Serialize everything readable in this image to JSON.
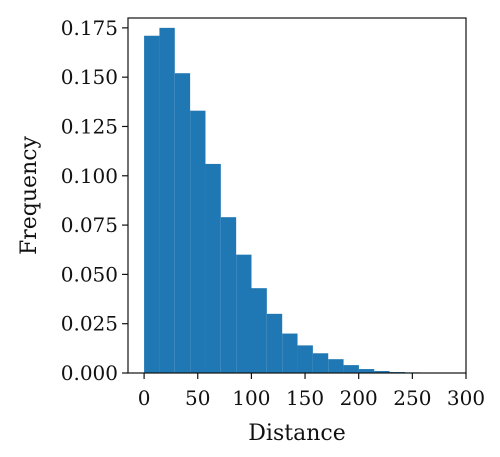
{
  "chart_data": {
    "type": "bar",
    "title": "",
    "xlabel": "Distance",
    "ylabel": "Frequency",
    "xlim": [
      -15,
      300
    ],
    "ylim": [
      0,
      0.18
    ],
    "grid": false,
    "bar_color": "#1f77b4",
    "bin_width": 14.3,
    "x_ticks": [
      "0",
      "50",
      "100",
      "150",
      "200",
      "250",
      "300"
    ],
    "y_ticks": [
      "0.000",
      "0.025",
      "0.050",
      "0.075",
      "0.100",
      "0.125",
      "0.150",
      "0.175"
    ],
    "bins": [
      {
        "x0": 0.0,
        "value": 0.171
      },
      {
        "x0": 14.3,
        "value": 0.175
      },
      {
        "x0": 28.6,
        "value": 0.152
      },
      {
        "x0": 42.9,
        "value": 0.133
      },
      {
        "x0": 57.2,
        "value": 0.106
      },
      {
        "x0": 71.5,
        "value": 0.079
      },
      {
        "x0": 85.8,
        "value": 0.06
      },
      {
        "x0": 100.1,
        "value": 0.043
      },
      {
        "x0": 114.4,
        "value": 0.03
      },
      {
        "x0": 128.7,
        "value": 0.02
      },
      {
        "x0": 143.0,
        "value": 0.014
      },
      {
        "x0": 157.3,
        "value": 0.01
      },
      {
        "x0": 171.6,
        "value": 0.007
      },
      {
        "x0": 185.9,
        "value": 0.004
      },
      {
        "x0": 200.2,
        "value": 0.002
      },
      {
        "x0": 214.5,
        "value": 0.001
      },
      {
        "x0": 228.8,
        "value": 0.0005
      },
      {
        "x0": 243.1,
        "value": 0.0003
      },
      {
        "x0": 257.4,
        "value": 0.0001
      },
      {
        "x0": 271.7,
        "value": 0.0001
      }
    ]
  }
}
